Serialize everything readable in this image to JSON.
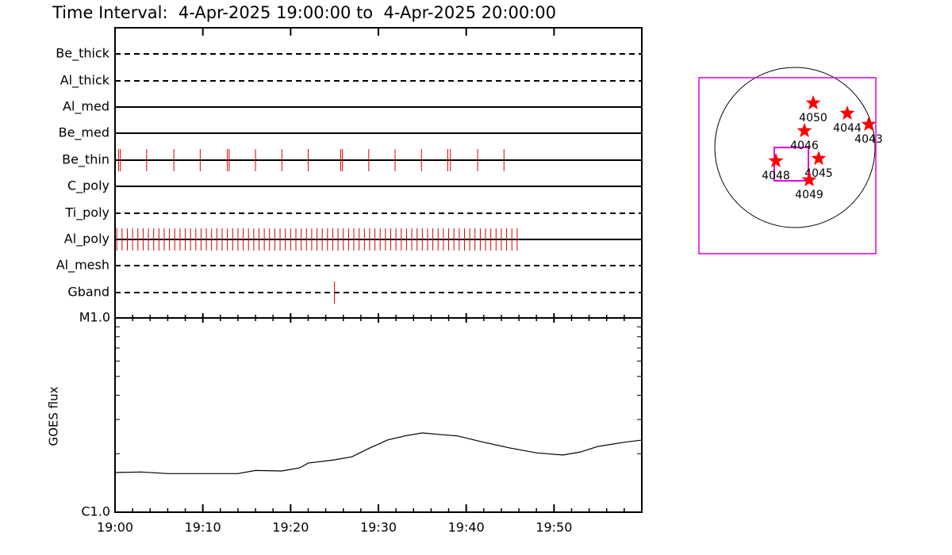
{
  "title": "Time Interval:  4-Apr-2025 19:00:00 to  4-Apr-2025 20:00:00",
  "filters": [
    {
      "name": "Be_thick",
      "line": "dashed",
      "events": []
    },
    {
      "name": "Al_thick",
      "line": "dashed",
      "events": []
    },
    {
      "name": "Al_med",
      "line": "solid",
      "events": []
    },
    {
      "name": "Be_med",
      "line": "solid",
      "events": []
    },
    {
      "name": "Be_thin",
      "line": "solid",
      "events": [
        0.4,
        0.6,
        3.6,
        6.7,
        9.7,
        12.8,
        13.0,
        16.0,
        19.0,
        22.0,
        25.7,
        25.9,
        28.9,
        31.9,
        34.9,
        37.9,
        38.2,
        41.3,
        44.3
      ]
    },
    {
      "name": "C_poly",
      "line": "solid",
      "events": []
    },
    {
      "name": "Ti_poly",
      "line": "dashed",
      "events": []
    },
    {
      "name": "Al_poly",
      "line": "solid",
      "events": [
        0.2,
        0.8,
        1.4,
        2.0,
        2.6,
        3.2,
        3.8,
        4.4,
        5.0,
        5.6,
        6.2,
        6.8,
        7.4,
        8.0,
        8.6,
        9.2,
        9.8,
        10.4,
        11.0,
        11.6,
        12.2,
        12.8,
        13.4,
        14.0,
        14.6,
        15.2,
        15.8,
        16.4,
        17.0,
        17.6,
        18.2,
        18.8,
        19.4,
        20.0,
        20.6,
        21.2,
        21.8,
        22.4,
        23.0,
        23.6,
        24.2,
        24.8,
        25.4,
        26.0,
        26.6,
        27.2,
        27.8,
        28.4,
        29.0,
        29.6,
        30.2,
        30.8,
        31.4,
        32.0,
        32.6,
        33.2,
        33.8,
        34.4,
        35.0,
        35.6,
        36.2,
        36.8,
        37.4,
        38.0,
        38.6,
        39.2,
        39.8,
        40.4,
        41.0,
        41.6,
        42.2,
        42.8,
        43.4,
        44.0,
        44.6,
        45.2,
        45.8
      ]
    },
    {
      "name": "Al_mesh",
      "line": "dashed",
      "events": []
    },
    {
      "name": "Gband",
      "line": "dashed",
      "events": [
        25.0
      ]
    }
  ],
  "chart_data": {
    "type": "line",
    "y_label": "GOES flux",
    "color": "#000000",
    "event_color": "#dd0000",
    "log_y": true,
    "x": [
      0,
      3,
      6,
      10,
      14,
      16,
      19,
      21,
      22,
      25,
      27,
      29,
      30,
      31,
      33,
      35,
      37,
      39,
      42,
      45,
      48,
      51,
      53,
      55,
      58,
      60
    ],
    "values": [
      1.6e-06,
      1.61e-06,
      1.58e-06,
      1.58e-06,
      1.58e-06,
      1.64e-06,
      1.63e-06,
      1.69e-06,
      1.79e-06,
      1.86e-06,
      1.93e-06,
      2.14e-06,
      2.24e-06,
      2.35e-06,
      2.47e-06,
      2.56e-06,
      2.51e-06,
      2.47e-06,
      2.29e-06,
      2.14e-06,
      2.02e-06,
      1.97e-06,
      2.04e-06,
      2.18e-06,
      2.29e-06,
      2.35e-06
    ],
    "xlim": [
      0,
      60
    ],
    "xticks": [
      {
        "value": 0,
        "label": "19:00"
      },
      {
        "value": 10,
        "label": "19:10"
      },
      {
        "value": 20,
        "label": "19:20"
      },
      {
        "value": 30,
        "label": "19:30"
      },
      {
        "value": 40,
        "label": "19:40"
      },
      {
        "value": 50,
        "label": "19:50"
      }
    ],
    "xminorticks": [
      2,
      4,
      6,
      8,
      12,
      14,
      16,
      18,
      22,
      24,
      26,
      28,
      32,
      34,
      36,
      38,
      42,
      44,
      46,
      48,
      52,
      54,
      56,
      58
    ],
    "ylim": [
      1e-06,
      1e-05
    ],
    "yticks": [
      {
        "value": 1e-06,
        "label": "C1.0"
      },
      {
        "value": 1e-05,
        "label": "M1.0"
      }
    ],
    "yminorticks": [
      2e-06,
      3e-06,
      4e-06,
      5e-06,
      6e-06,
      7e-06,
      8e-06,
      9e-06
    ]
  },
  "map": {
    "regions": [
      "4050",
      "4044",
      "4043",
      "4046",
      "4045",
      "4048",
      "4049"
    ]
  }
}
